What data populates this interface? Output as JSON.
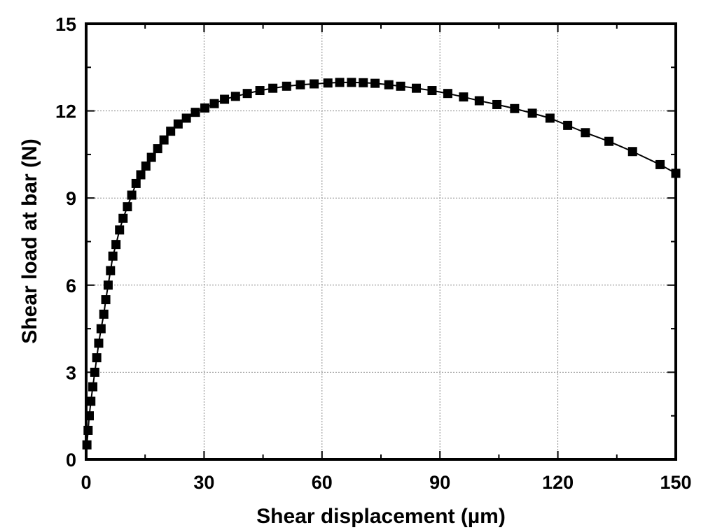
{
  "chart_data": {
    "type": "line",
    "title": "",
    "xlabel": "Shear displacement (µm)",
    "ylabel": "Shear load at bar (N)",
    "xlim": [
      0,
      150
    ],
    "ylim": [
      0,
      15
    ],
    "x_ticks": [
      0,
      30,
      60,
      90,
      120,
      150
    ],
    "y_ticks": [
      0,
      3,
      6,
      9,
      12,
      15
    ],
    "x_tick_labels": [
      "0",
      "30",
      "60",
      "90",
      "120",
      "150"
    ],
    "y_tick_labels": [
      "0",
      "3",
      "6",
      "9",
      "12",
      "15"
    ],
    "grid": true,
    "marker": "square",
    "series": [
      {
        "points": [
          [
            0.2,
            0.5
          ],
          [
            0.5,
            1.0
          ],
          [
            0.8,
            1.5
          ],
          [
            1.2,
            2.0
          ],
          [
            1.7,
            2.5
          ],
          [
            2.2,
            3.0
          ],
          [
            2.7,
            3.5
          ],
          [
            3.2,
            4.0
          ],
          [
            3.8,
            4.5
          ],
          [
            4.5,
            5.0
          ],
          [
            5.0,
            5.5
          ],
          [
            5.6,
            6.0
          ],
          [
            6.2,
            6.5
          ],
          [
            6.8,
            7.0
          ],
          [
            7.6,
            7.4
          ],
          [
            8.5,
            7.9
          ],
          [
            9.4,
            8.3
          ],
          [
            10.5,
            8.7
          ],
          [
            11.6,
            9.1
          ],
          [
            12.7,
            9.5
          ],
          [
            13.9,
            9.8
          ],
          [
            15.2,
            10.1
          ],
          [
            16.6,
            10.4
          ],
          [
            18.2,
            10.7
          ],
          [
            19.8,
            11.0
          ],
          [
            21.5,
            11.3
          ],
          [
            23.4,
            11.55
          ],
          [
            25.5,
            11.75
          ],
          [
            27.8,
            11.95
          ],
          [
            30.2,
            12.1
          ],
          [
            32.6,
            12.25
          ],
          [
            35.2,
            12.4
          ],
          [
            38.0,
            12.5
          ],
          [
            41.0,
            12.6
          ],
          [
            44.2,
            12.7
          ],
          [
            47.5,
            12.78
          ],
          [
            51.0,
            12.85
          ],
          [
            54.5,
            12.9
          ],
          [
            58.0,
            12.93
          ],
          [
            61.5,
            12.96
          ],
          [
            64.5,
            12.98
          ],
          [
            67.5,
            12.98
          ],
          [
            70.5,
            12.97
          ],
          [
            73.5,
            12.95
          ],
          [
            77.0,
            12.9
          ],
          [
            80.0,
            12.85
          ],
          [
            84.0,
            12.78
          ],
          [
            88.0,
            12.7
          ],
          [
            92.0,
            12.6
          ],
          [
            96.0,
            12.48
          ],
          [
            100.0,
            12.35
          ],
          [
            104.5,
            12.22
          ],
          [
            109.0,
            12.08
          ],
          [
            113.5,
            11.92
          ],
          [
            118.0,
            11.75
          ],
          [
            122.5,
            11.5
          ],
          [
            127.0,
            11.25
          ],
          [
            133.0,
            10.95
          ],
          [
            139.0,
            10.6
          ],
          [
            146.0,
            10.15
          ],
          [
            150.0,
            9.85
          ]
        ]
      }
    ]
  }
}
